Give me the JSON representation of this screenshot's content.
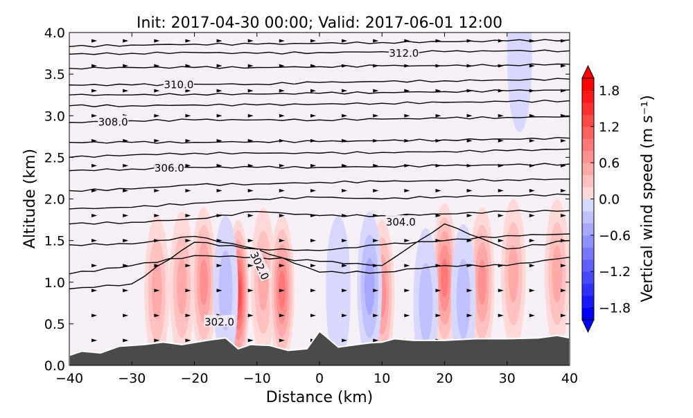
{
  "chart_data": {
    "type": "contour",
    "title": "Init: 2017-04-30 00:00; Valid: 2017-06-01 12:00",
    "xlabel": "Distance (km)",
    "ylabel": "Altitude (km)",
    "xlim": [
      -40,
      40
    ],
    "ylim": [
      0,
      4
    ],
    "xticks": [
      "−40",
      "−30",
      "−20",
      "−10",
      "0",
      "10",
      "20",
      "30",
      "40"
    ],
    "xtick_values": [
      -40,
      -30,
      -20,
      -10,
      0,
      10,
      20,
      30,
      40
    ],
    "yticks": [
      "0.0",
      "0.5",
      "1.0",
      "1.5",
      "2.0",
      "2.5",
      "3.0",
      "3.5",
      "4.0"
    ],
    "ytick_values": [
      0,
      0.5,
      1,
      1.5,
      2,
      2.5,
      3,
      3.5,
      4
    ],
    "colorbar": {
      "label": "Vertical wind speed (m s⁻¹)",
      "range": [
        -2,
        2
      ],
      "step": 0.2,
      "extend": "both",
      "ticks": [
        "1.8",
        "1.2",
        "0.6",
        "0.0",
        "−0.6",
        "−1.2",
        "−1.8"
      ],
      "tick_values": [
        1.8,
        1.2,
        0.6,
        0.0,
        -0.6,
        -1.2,
        -1.8
      ],
      "pos_color": "#ff0000",
      "neg_color": "#0000ff"
    },
    "background_w": 0.05,
    "vertical_velocity_cells": [
      {
        "x": -26,
        "z": 0.9,
        "w": 0.5
      },
      {
        "x": -22,
        "z": 0.95,
        "w": 0.7
      },
      {
        "x": -18.5,
        "z": 1.0,
        "w": 0.8
      },
      {
        "x": -13,
        "z": 0.85,
        "w": 1.4
      },
      {
        "x": -9,
        "z": 1.0,
        "w": 0.7
      },
      {
        "x": -6,
        "z": 0.9,
        "w": 1.0
      },
      {
        "x": 10,
        "z": 0.85,
        "w": 0.8
      },
      {
        "x": 20,
        "z": 1.05,
        "w": 1.0
      },
      {
        "x": 26,
        "z": 1.0,
        "w": 0.8
      },
      {
        "x": 31,
        "z": 1.1,
        "w": 0.5
      },
      {
        "x": 38,
        "z": 1.1,
        "w": 0.5
      },
      {
        "x": -15,
        "z": 0.9,
        "w": -0.4
      },
      {
        "x": 3,
        "z": 0.9,
        "w": -0.3
      },
      {
        "x": 8,
        "z": 0.95,
        "w": -0.6
      },
      {
        "x": 17,
        "z": 0.75,
        "w": -0.4
      },
      {
        "x": 23,
        "z": 0.8,
        "w": -0.4
      },
      {
        "x": 32,
        "z": 3.7,
        "w": -0.3
      }
    ],
    "terrain": {
      "x": [
        -40,
        -38,
        -35,
        -32,
        -28,
        -25,
        -22,
        -18,
        -15,
        -13,
        -11,
        -8,
        -5,
        -2,
        0,
        1,
        3,
        8,
        10,
        12,
        15,
        20,
        25,
        30,
        35,
        38,
        40
      ],
      "z": [
        0.12,
        0.17,
        0.15,
        0.23,
        0.25,
        0.28,
        0.25,
        0.3,
        0.33,
        0.2,
        0.25,
        0.24,
        0.18,
        0.2,
        0.41,
        0.35,
        0.22,
        0.27,
        0.28,
        0.32,
        0.3,
        0.3,
        0.32,
        0.32,
        0.33,
        0.36,
        0.33
      ]
    },
    "theta_contours": {
      "x": [
        -40,
        -30,
        -20,
        -10,
        0,
        10,
        20,
        30,
        40
      ],
      "lines": [
        [
          3.83,
          3.85,
          3.86,
          3.86,
          3.87,
          3.88,
          3.89,
          3.9,
          3.91
        ],
        [
          3.74,
          3.75,
          3.76,
          3.75,
          3.76,
          3.77,
          3.77,
          3.78,
          3.78
        ],
        [
          3.57,
          3.58,
          3.58,
          3.58,
          3.59,
          3.6,
          3.6,
          3.61,
          3.62
        ],
        [
          3.37,
          3.37,
          3.38,
          3.38,
          3.4,
          3.41,
          3.42,
          3.43,
          3.44
        ],
        [
          3.25,
          3.25,
          3.26,
          3.26,
          3.27,
          3.28,
          3.29,
          3.3,
          3.31
        ],
        [
          3.12,
          3.12,
          3.13,
          3.13,
          3.14,
          3.15,
          3.16,
          3.17,
          3.18
        ],
        [
          2.92,
          2.94,
          2.95,
          2.95,
          2.95,
          2.96,
          2.97,
          2.98,
          2.99
        ],
        [
          2.68,
          2.68,
          2.68,
          2.69,
          2.69,
          2.7,
          2.71,
          2.72,
          2.73
        ],
        [
          2.5,
          2.53,
          2.55,
          2.55,
          2.55,
          2.56,
          2.57,
          2.58,
          2.6
        ],
        [
          2.34,
          2.36,
          2.38,
          2.38,
          2.38,
          2.39,
          2.4,
          2.41,
          2.42
        ],
        [
          2.1,
          2.12,
          2.17,
          2.18,
          2.2,
          2.21,
          2.22,
          2.23,
          2.24
        ],
        [
          1.88,
          1.9,
          1.95,
          2.0,
          2.02,
          2.0,
          2.03,
          2.04,
          2.05
        ],
        [
          1.7,
          1.72,
          1.76,
          1.85,
          1.8,
          1.8,
          1.82,
          1.85,
          1.86
        ],
        [
          1.45,
          1.46,
          1.55,
          1.4,
          1.38,
          1.45,
          1.5,
          1.56,
          1.58
        ],
        [
          1.1,
          1.2,
          1.32,
          1.3,
          1.25,
          1.2,
          1.7,
          1.4,
          1.5
        ],
        [
          0.92,
          0.98,
          1.48,
          1.4,
          1.12,
          1.12,
          1.2,
          1.2,
          1.3
        ]
      ],
      "labels": [
        {
          "text": "312.0",
          "x": 13.5,
          "z": 3.76
        },
        {
          "text": "310.0",
          "x": -22.5,
          "z": 3.38
        },
        {
          "text": "308.0",
          "x": -33,
          "z": 2.93
        },
        {
          "text": "306.0",
          "x": -24,
          "z": 2.38
        },
        {
          "text": "304.0",
          "x": 13,
          "z": 1.73
        },
        {
          "text": "302.0",
          "x": -9.5,
          "z": 1.2
        },
        {
          "text": "302.0",
          "x": -16,
          "z": 0.53
        }
      ]
    },
    "wind_vectors": {
      "x": [
        -36,
        -31,
        -26,
        -21,
        -16,
        -11,
        -6,
        -1,
        4,
        9,
        14,
        19,
        24,
        29,
        34,
        39
      ],
      "z": [
        0.3,
        0.6,
        0.9,
        1.2,
        1.5,
        1.8,
        2.1,
        2.4,
        2.7,
        3.0,
        3.3,
        3.6,
        3.9
      ],
      "direction": "eastward"
    }
  }
}
